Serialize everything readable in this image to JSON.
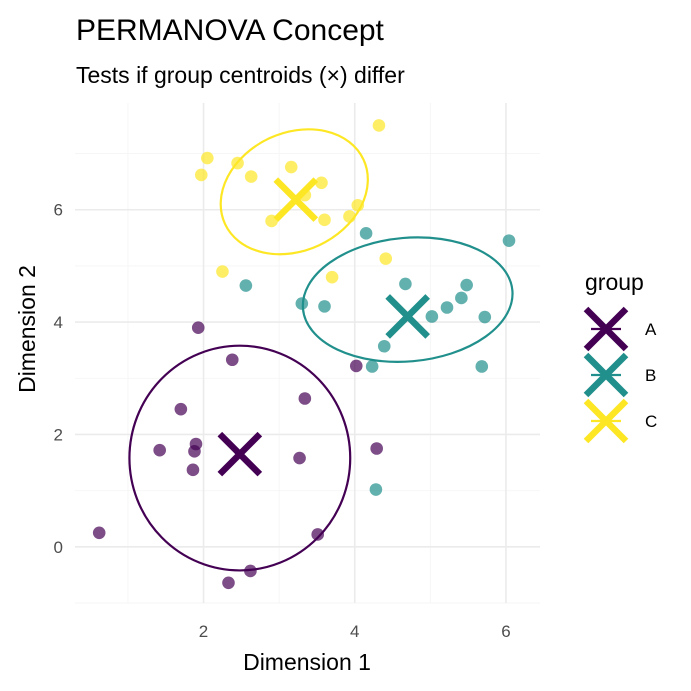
{
  "chart_data": {
    "type": "scatter",
    "title": "PERMANOVA Concept",
    "subtitle": "Tests if group centroids (×) differ",
    "xlabel": "Dimension 1",
    "ylabel": "Dimension 2",
    "xlim": [
      0.3,
      6.45
    ],
    "ylim": [
      -1.0,
      7.9
    ],
    "xticks": [
      2,
      4,
      6
    ],
    "yticks": [
      0,
      2,
      4,
      6
    ],
    "grid": true,
    "legend": {
      "title": "group",
      "position": "right"
    },
    "series": [
      {
        "name": "A",
        "color": "#440154",
        "points": [
          [
            0.62,
            0.25
          ],
          [
            1.42,
            1.72
          ],
          [
            1.7,
            2.45
          ],
          [
            1.86,
            1.37
          ],
          [
            1.88,
            1.7
          ],
          [
            1.9,
            1.83
          ],
          [
            1.93,
            3.9
          ],
          [
            2.33,
            -0.64
          ],
          [
            2.38,
            3.33
          ],
          [
            2.62,
            -0.43
          ],
          [
            3.27,
            1.58
          ],
          [
            3.34,
            2.64
          ],
          [
            3.51,
            0.22
          ],
          [
            4.02,
            3.22
          ],
          [
            4.29,
            1.75
          ]
        ],
        "centroid": [
          2.48,
          1.65
        ],
        "ellipse": {
          "center": [
            2.48,
            1.58
          ],
          "rx": 1.46,
          "ry": 2.0,
          "angle_deg": 0
        }
      },
      {
        "name": "B",
        "color": "#21908C",
        "points": [
          [
            2.56,
            4.65
          ],
          [
            3.3,
            4.33
          ],
          [
            3.6,
            4.28
          ],
          [
            4.15,
            5.58
          ],
          [
            4.23,
            3.21
          ],
          [
            4.28,
            1.02
          ],
          [
            4.39,
            3.57
          ],
          [
            4.67,
            4.68
          ],
          [
            5.02,
            4.1
          ],
          [
            5.22,
            4.26
          ],
          [
            5.41,
            4.43
          ],
          [
            5.48,
            4.66
          ],
          [
            5.68,
            3.21
          ],
          [
            5.72,
            4.09
          ],
          [
            6.04,
            5.45
          ]
        ],
        "centroid": [
          4.7,
          4.1
        ],
        "ellipse": {
          "center": [
            4.7,
            4.4
          ],
          "rx": 1.39,
          "ry": 1.1,
          "angle_deg": -5
        }
      },
      {
        "name": "C",
        "color": "#FDE725",
        "points": [
          [
            1.97,
            6.62
          ],
          [
            2.05,
            6.92
          ],
          [
            2.25,
            4.9
          ],
          [
            2.45,
            6.83
          ],
          [
            2.63,
            6.59
          ],
          [
            2.9,
            5.8
          ],
          [
            3.16,
            6.76
          ],
          [
            3.34,
            6.26
          ],
          [
            3.56,
            6.48
          ],
          [
            3.6,
            5.82
          ],
          [
            3.7,
            4.8
          ],
          [
            3.93,
            5.88
          ],
          [
            4.04,
            6.08
          ],
          [
            4.32,
            7.5
          ],
          [
            4.41,
            5.13
          ]
        ],
        "centroid": [
          3.22,
          6.18
        ],
        "ellipse": {
          "center": [
            3.2,
            6.32
          ],
          "rx": 1.01,
          "ry": 1.05,
          "angle_deg": -25
        }
      }
    ]
  }
}
